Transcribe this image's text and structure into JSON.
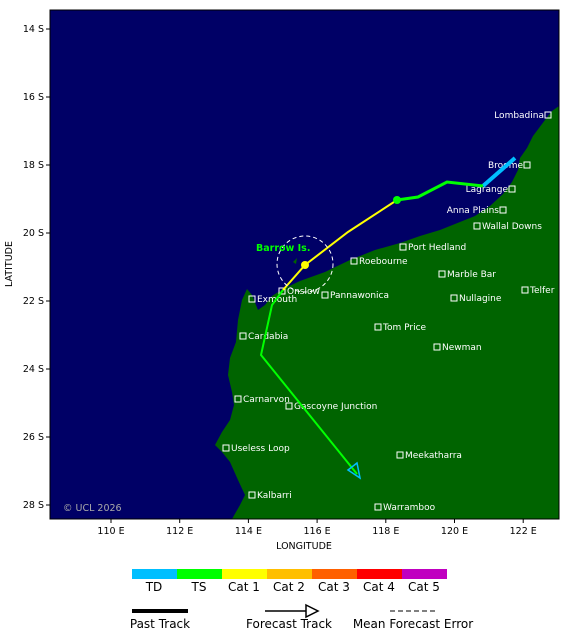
{
  "map": {
    "y_axis": {
      "title": "LATITUDE",
      "ticks": [
        "14 S",
        "16 S",
        "18 S",
        "20 S",
        "22 S",
        "24 S",
        "26 S",
        "28 S"
      ]
    },
    "x_axis": {
      "title": "LONGITUDE",
      "ticks": [
        "110 E",
        "112 E",
        "114 E",
        "116 E",
        "118 E",
        "120 E",
        "122 E"
      ]
    },
    "places": [
      "Lombadina",
      "Broome",
      "Lagrange",
      "Anna Plains",
      "Wallal Downs",
      "Port Hedland",
      "Roebourne",
      "Marble Bar",
      "Telfer",
      "Onslow",
      "Pannawonica",
      "Exmouth",
      "Nullagine",
      "Tom Price",
      "Cardabia",
      "Newman",
      "Carnarvon",
      "Gascoyne Junction",
      "Useless Loop",
      "Meekatharra",
      "Kalbarri",
      "Warramboo"
    ],
    "island_label": "Barrow Is.",
    "copyright": "© UCL 2026"
  },
  "legend": {
    "categories": [
      {
        "name": "TD",
        "color": "#00bfff"
      },
      {
        "name": "TS",
        "color": "#00ff00"
      },
      {
        "name": "Cat 1",
        "color": "#ffff00"
      },
      {
        "name": "Cat 2",
        "color": "#ffbf00"
      },
      {
        "name": "Cat 3",
        "color": "#ff6000"
      },
      {
        "name": "Cat 4",
        "color": "#ff0000"
      },
      {
        "name": "Cat 5",
        "color": "#c000c0"
      }
    ],
    "track_types": [
      "Past Track",
      "Forecast Track",
      "Mean Forecast Error"
    ]
  }
}
